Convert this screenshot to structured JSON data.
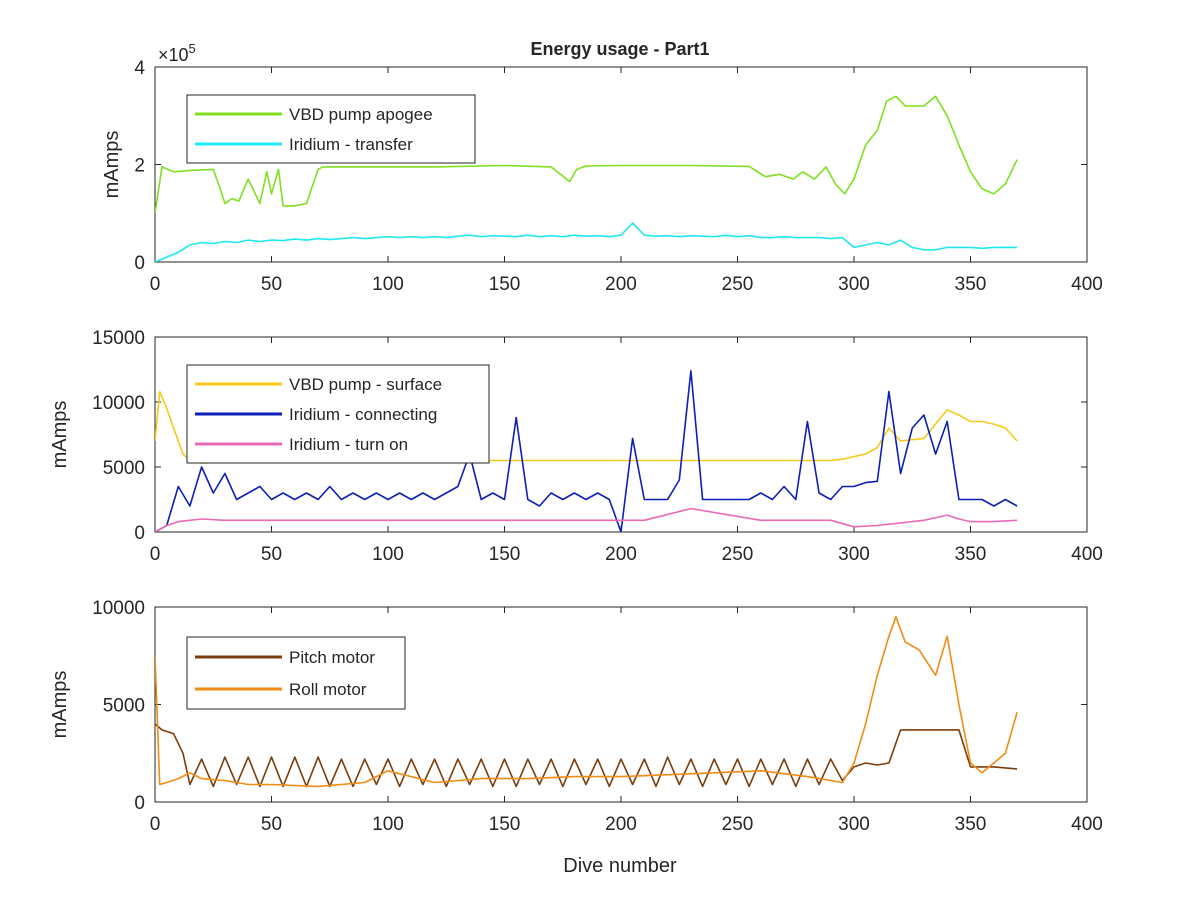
{
  "figure": {
    "title": "Energy usage - Part1",
    "xlabel": "Dive number"
  },
  "chart_data": [
    {
      "type": "line",
      "title": "Energy usage - Part1",
      "xlabel": "",
      "ylabel": "mAmps",
      "exponent_label": "×10",
      "exponent_power": "5",
      "xlim": [
        0,
        400
      ],
      "ylim": [
        0,
        4
      ],
      "xticks": [
        "0",
        "50",
        "100",
        "150",
        "200",
        "250",
        "300",
        "350",
        "400"
      ],
      "yticks": [
        "0",
        "2",
        "4"
      ],
      "grid": false,
      "legend_position": "top-left",
      "series": [
        {
          "name": "VBD pump apogee",
          "color": "#7fe01f",
          "x": [
            0,
            3,
            8,
            15,
            25,
            28,
            30,
            33,
            36,
            40,
            45,
            48,
            50,
            53,
            55,
            58,
            60,
            65,
            70,
            72,
            75,
            90,
            120,
            150,
            170,
            178,
            181,
            185,
            200,
            230,
            255,
            262,
            268,
            274,
            278,
            283,
            285,
            288,
            292,
            296,
            300,
            305,
            310,
            314,
            318,
            322,
            330,
            335,
            340,
            345,
            350,
            355,
            360,
            365,
            370
          ],
          "y": [
            1.0,
            1.95,
            1.85,
            1.88,
            1.9,
            1.5,
            1.2,
            1.3,
            1.25,
            1.7,
            1.2,
            1.85,
            1.4,
            1.9,
            1.15,
            1.15,
            1.15,
            1.2,
            1.9,
            1.95,
            1.95,
            1.95,
            1.95,
            1.98,
            1.95,
            1.65,
            1.9,
            1.97,
            1.98,
            1.98,
            1.96,
            1.75,
            1.8,
            1.7,
            1.85,
            1.7,
            1.8,
            1.95,
            1.6,
            1.4,
            1.7,
            2.4,
            2.7,
            3.3,
            3.4,
            3.2,
            3.2,
            3.4,
            3.0,
            2.4,
            1.85,
            1.5,
            1.4,
            1.6,
            2.1
          ]
        },
        {
          "name": "Iridium - transfer",
          "color": "#1fe8f0",
          "x": [
            0,
            5,
            10,
            15,
            20,
            25,
            30,
            35,
            40,
            45,
            50,
            55,
            60,
            65,
            70,
            75,
            80,
            85,
            90,
            95,
            100,
            105,
            110,
            115,
            120,
            125,
            130,
            135,
            140,
            145,
            150,
            155,
            160,
            165,
            170,
            175,
            180,
            185,
            190,
            195,
            200,
            205,
            210,
            215,
            220,
            225,
            230,
            235,
            240,
            245,
            250,
            255,
            260,
            265,
            270,
            275,
            280,
            285,
            290,
            295,
            300,
            305,
            310,
            315,
            320,
            325,
            330,
            335,
            340,
            345,
            350,
            355,
            360,
            365,
            370
          ],
          "y": [
            0,
            0.1,
            0.2,
            0.35,
            0.4,
            0.38,
            0.42,
            0.4,
            0.45,
            0.42,
            0.45,
            0.44,
            0.47,
            0.45,
            0.48,
            0.46,
            0.48,
            0.5,
            0.48,
            0.5,
            0.52,
            0.5,
            0.52,
            0.5,
            0.52,
            0.5,
            0.53,
            0.55,
            0.52,
            0.54,
            0.53,
            0.52,
            0.55,
            0.52,
            0.54,
            0.52,
            0.55,
            0.53,
            0.54,
            0.52,
            0.55,
            0.8,
            0.55,
            0.53,
            0.54,
            0.52,
            0.54,
            0.53,
            0.52,
            0.55,
            0.52,
            0.54,
            0.5,
            0.5,
            0.52,
            0.5,
            0.5,
            0.5,
            0.48,
            0.5,
            0.3,
            0.35,
            0.4,
            0.35,
            0.45,
            0.3,
            0.25,
            0.25,
            0.3,
            0.3,
            0.3,
            0.28,
            0.3,
            0.3,
            0.3
          ]
        }
      ]
    },
    {
      "type": "line",
      "title": "",
      "xlabel": "",
      "ylabel": "mAmps",
      "xlim": [
        0,
        400
      ],
      "ylim": [
        0,
        15000
      ],
      "xticks": [
        "0",
        "50",
        "100",
        "150",
        "200",
        "250",
        "300",
        "350",
        "400"
      ],
      "yticks": [
        "0",
        "5000",
        "10000",
        "15000"
      ],
      "grid": false,
      "legend_position": "top-left",
      "series": [
        {
          "name": "VBD pump - surface",
          "color": "#f7c91a",
          "x": [
            0,
            2,
            5,
            8,
            12,
            15,
            20,
            30,
            50,
            80,
            110,
            140,
            170,
            200,
            230,
            260,
            290,
            295,
            300,
            305,
            310,
            315,
            320,
            330,
            340,
            345,
            350,
            355,
            360,
            365,
            370
          ],
          "y": [
            7000,
            10800,
            9500,
            8000,
            6000,
            5500,
            5300,
            5400,
            5500,
            5500,
            5500,
            5500,
            5500,
            5500,
            5500,
            5500,
            5500,
            5600,
            5800,
            6000,
            6500,
            8000,
            7000,
            7200,
            9400,
            9000,
            8500,
            8500,
            8300,
            8000,
            7000
          ]
        },
        {
          "name": "Iridium - connecting",
          "color": "#0d1fb8",
          "x": [
            0,
            5,
            10,
            15,
            20,
            25,
            30,
            35,
            40,
            45,
            50,
            55,
            60,
            65,
            70,
            75,
            80,
            85,
            90,
            95,
            100,
            105,
            110,
            115,
            120,
            125,
            130,
            135,
            140,
            145,
            150,
            155,
            160,
            165,
            170,
            175,
            180,
            185,
            190,
            195,
            200,
            205,
            210,
            215,
            220,
            225,
            230,
            235,
            240,
            245,
            250,
            255,
            260,
            265,
            270,
            275,
            280,
            285,
            290,
            295,
            300,
            305,
            310,
            315,
            320,
            325,
            330,
            335,
            340,
            345,
            350,
            355,
            360,
            365,
            370
          ],
          "y": [
            0,
            500,
            3500,
            2000,
            5000,
            3000,
            4500,
            2500,
            3000,
            3500,
            2500,
            3000,
            2500,
            3000,
            2500,
            3500,
            2500,
            3000,
            2500,
            3000,
            2500,
            3000,
            2500,
            3000,
            2500,
            3000,
            3500,
            6000,
            2500,
            3000,
            2500,
            8800,
            2500,
            2000,
            3000,
            2500,
            3000,
            2500,
            3000,
            2500,
            0,
            7200,
            2500,
            2500,
            2500,
            4000,
            12400,
            2500,
            2500,
            2500,
            2500,
            2500,
            3000,
            2500,
            3500,
            2500,
            8500,
            3000,
            2500,
            3500,
            3500,
            3800,
            3900,
            10800,
            4500,
            8000,
            9000,
            6000,
            8500,
            2500,
            2500,
            2500,
            2000,
            2500,
            2000
          ]
        },
        {
          "name": "Iridium - turn on",
          "color": "#e86bb4",
          "x": [
            0,
            5,
            10,
            15,
            20,
            30,
            50,
            80,
            110,
            140,
            170,
            200,
            210,
            230,
            260,
            290,
            300,
            310,
            320,
            330,
            340,
            345,
            350,
            360,
            370
          ],
          "y": [
            0,
            500,
            800,
            900,
            1000,
            900,
            900,
            900,
            900,
            900,
            900,
            900,
            900,
            1800,
            900,
            900,
            400,
            500,
            700,
            900,
            1300,
            1000,
            800,
            800,
            900
          ]
        }
      ]
    },
    {
      "type": "line",
      "title": "",
      "xlabel": "Dive number",
      "ylabel": "mAmps",
      "xlim": [
        0,
        400
      ],
      "ylim": [
        0,
        10000
      ],
      "xticks": [
        "0",
        "50",
        "100",
        "150",
        "200",
        "250",
        "300",
        "350",
        "400"
      ],
      "yticks": [
        "0",
        "5000",
        "10000"
      ],
      "grid": false,
      "legend_position": "top-left",
      "series": [
        {
          "name": "Pitch motor",
          "color": "#7a3d0c",
          "x": [
            0,
            3,
            8,
            12,
            15,
            20,
            25,
            30,
            35,
            40,
            45,
            50,
            55,
            60,
            65,
            70,
            75,
            80,
            85,
            90,
            95,
            100,
            105,
            110,
            115,
            120,
            125,
            130,
            135,
            140,
            145,
            150,
            155,
            160,
            165,
            170,
            175,
            180,
            185,
            190,
            195,
            200,
            205,
            210,
            215,
            220,
            225,
            230,
            235,
            240,
            245,
            250,
            255,
            260,
            265,
            270,
            275,
            280,
            285,
            290,
            295,
            300,
            305,
            310,
            315,
            320,
            330,
            340,
            345,
            350,
            360,
            370
          ],
          "y": [
            4000,
            3700,
            3500,
            2500,
            900,
            2200,
            800,
            2300,
            900,
            2300,
            800,
            2300,
            800,
            2300,
            800,
            2300,
            800,
            2200,
            800,
            2200,
            900,
            2200,
            800,
            2200,
            900,
            2200,
            800,
            2200,
            900,
            2200,
            800,
            2200,
            800,
            2200,
            900,
            2200,
            800,
            2200,
            900,
            2200,
            800,
            2200,
            900,
            2200,
            800,
            2300,
            900,
            2200,
            800,
            2200,
            900,
            2200,
            800,
            2200,
            900,
            2200,
            800,
            2200,
            900,
            2200,
            1100,
            1800,
            2000,
            1900,
            2000,
            3700,
            3700,
            3700,
            3700,
            1800,
            1800,
            1700
          ]
        },
        {
          "name": "Roll motor",
          "color": "#f08c14",
          "x": [
            0,
            2,
            5,
            10,
            15,
            20,
            30,
            40,
            50,
            70,
            90,
            100,
            120,
            140,
            160,
            180,
            200,
            220,
            240,
            260,
            280,
            295,
            300,
            305,
            310,
            315,
            318,
            322,
            328,
            335,
            340,
            345,
            350,
            355,
            360,
            365,
            370
          ],
          "y": [
            7500,
            900,
            1000,
            1200,
            1500,
            1200,
            1100,
            900,
            900,
            800,
            1000,
            1600,
            1000,
            1200,
            1200,
            1300,
            1300,
            1400,
            1500,
            1600,
            1300,
            1000,
            2000,
            4000,
            6500,
            8500,
            9500,
            8200,
            7800,
            6500,
            8500,
            5000,
            2000,
            1500,
            2000,
            2500,
            4600
          ]
        }
      ]
    }
  ]
}
